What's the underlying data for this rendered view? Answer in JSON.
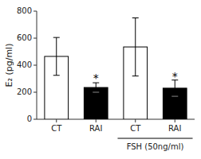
{
  "chart_data": {
    "type": "bar",
    "categories": [
      "CT",
      "RAI",
      "CT",
      "RAI"
    ],
    "values": [
      465,
      235,
      535,
      230
    ],
    "errors": [
      140,
      35,
      215,
      60
    ],
    "colors": [
      "white",
      "black",
      "white",
      "black"
    ],
    "ylabel": "E₂ (pg/ml)",
    "ylim": [
      0,
      800
    ],
    "yticks": [
      0,
      200,
      400,
      600,
      800
    ],
    "grid": false,
    "annotations": [
      {
        "text": "*",
        "x_index": 1,
        "y": 290
      },
      {
        "text": "*",
        "x_index": 3,
        "y": 300
      }
    ],
    "groups": [
      {
        "name": "FSH (50ng/ml)",
        "indices": [
          2,
          3
        ]
      }
    ]
  }
}
